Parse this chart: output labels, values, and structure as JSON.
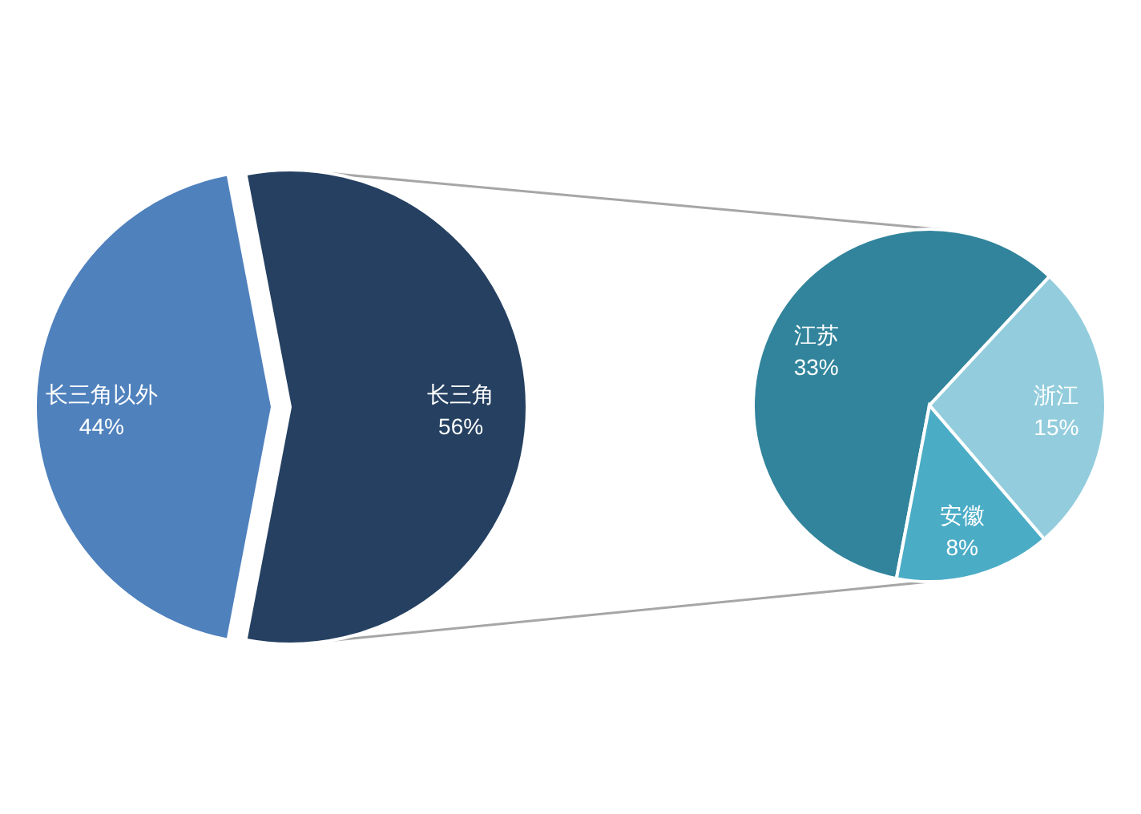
{
  "chart_data": [
    {
      "type": "pie",
      "categories": [
        "长三角以外",
        "长三角"
      ],
      "values": [
        44,
        56
      ],
      "colors": [
        "#4f81bd",
        "#254061"
      ],
      "value_labels": [
        "44%",
        "56%"
      ]
    },
    {
      "type": "pie",
      "categories": [
        "江苏",
        "浙江",
        "安徽"
      ],
      "values": [
        33,
        15,
        8
      ],
      "colors": [
        "#31849b",
        "#93cddd",
        "#4bacc6"
      ],
      "value_labels": [
        "33%",
        "15%",
        "8%"
      ]
    }
  ]
}
